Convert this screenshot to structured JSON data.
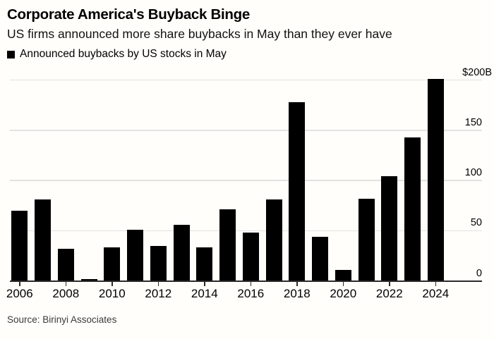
{
  "header": {
    "title": "Corporate America's Buyback Binge",
    "subtitle": "US firms announced more share buybacks in May than they ever have"
  },
  "legend": {
    "marker_color": "#000000",
    "label": "Announced buybacks by US stocks in May"
  },
  "source": "Source: Birinyi Associates",
  "chart_data": {
    "type": "bar",
    "title": "Announced buybacks by US stocks in May",
    "unit": "$B",
    "categories": [
      2006,
      2007,
      2008,
      2009,
      2010,
      2011,
      2012,
      2013,
      2014,
      2015,
      2016,
      2017,
      2018,
      2019,
      2020,
      2021,
      2022,
      2023,
      2024
    ],
    "values": [
      70,
      81,
      32,
      2,
      33,
      51,
      35,
      56,
      33,
      71,
      48,
      81,
      178,
      44,
      11,
      82,
      104,
      143,
      201
    ],
    "ylim": [
      0,
      200
    ],
    "y_ticks": [
      {
        "value": 0,
        "label": "0"
      },
      {
        "value": 50,
        "label": "50"
      },
      {
        "value": 100,
        "label": "100"
      },
      {
        "value": 150,
        "label": "150"
      },
      {
        "value": 200,
        "label": "$200B"
      }
    ],
    "x_tick_years": [
      2006,
      2008,
      2010,
      2012,
      2014,
      2016,
      2018,
      2020,
      2022,
      2024
    ],
    "bar_color": "#000000",
    "grid_color": "#e2e2e2",
    "axis_color": "#2b2b2b",
    "grid": true,
    "legend_position": "top-left",
    "y_axis_side": "right"
  }
}
